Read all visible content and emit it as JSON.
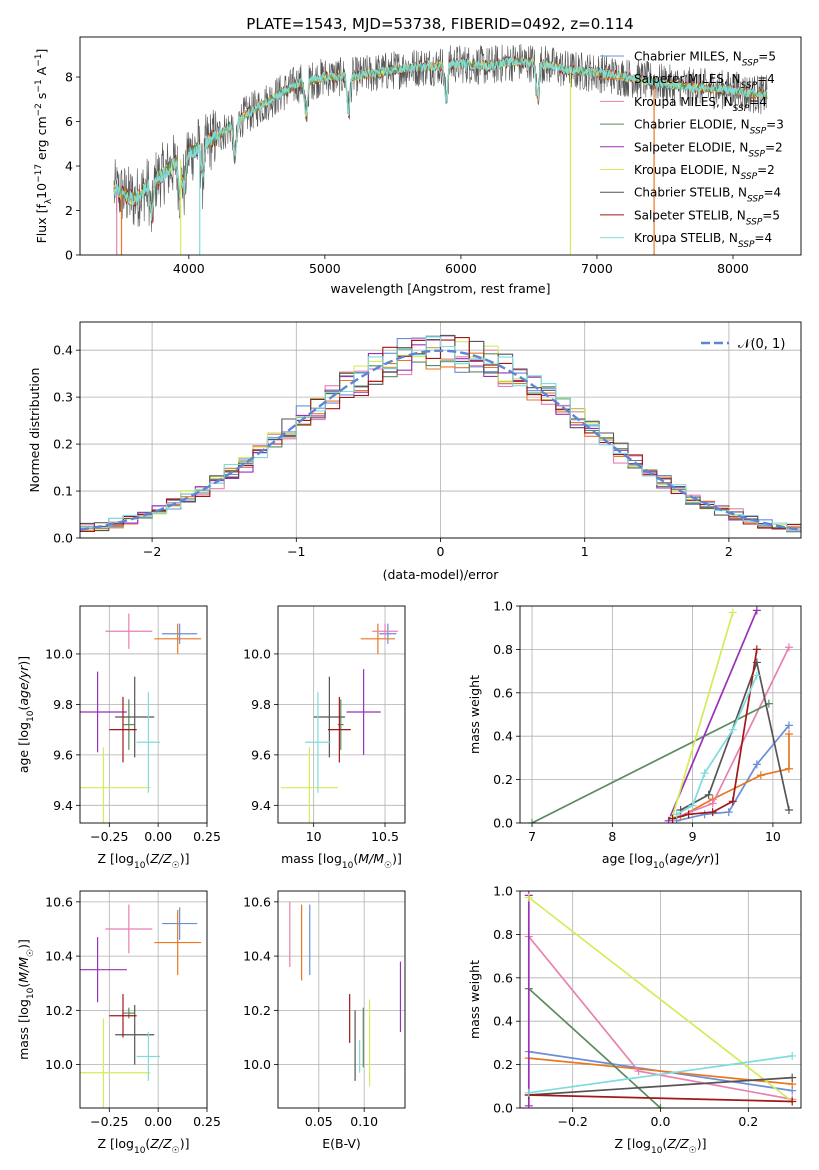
{
  "title": "PLATE=1543, MJD=53738, FIBERID=0492, z=0.114",
  "colors": {
    "Chabrier MILES": "#6a8fd8",
    "Salpeter MILES": "#e87722",
    "Kroupa MILES": "#e97fb2",
    "Chabrier ELODIE": "#5b8a5f",
    "Salpeter ELODIE": "#9b30b8",
    "Kroupa ELODIE": "#d4ec5a",
    "Chabrier STELIB": "#555555",
    "Salpeter STELIB": "#a01818",
    "Kroupa STELIB": "#7fdcdc",
    "normal_curve": "#5b86d6"
  },
  "chart_data": [
    {
      "type": "line",
      "xlabel": "wavelength [Angstrom, rest frame]",
      "ylabel": "Flux [f_λ 10^-17 erg cm^-2 s^-1 A^-1]",
      "xlim": [
        3200,
        8500
      ],
      "ylim": [
        0,
        9.8
      ],
      "xticks": [
        4000,
        5000,
        6000,
        7000,
        8000
      ],
      "yticks": [
        0,
        2,
        4,
        6,
        8
      ],
      "grid": false,
      "legend_position": "right",
      "series": [
        {
          "name": "Chabrier MILES, N_SSP=5"
        },
        {
          "name": "Salpeter MILES, N_SSP=4"
        },
        {
          "name": "Kroupa MILES, N_SSP=4"
        },
        {
          "name": "Chabrier ELODIE, N_SSP=3"
        },
        {
          "name": "Salpeter ELODIE, N_SSP=2"
        },
        {
          "name": "Kroupa ELODIE, N_SSP=2"
        },
        {
          "name": "Chabrier STELIB, N_SSP=4"
        },
        {
          "name": "Salpeter STELIB, N_SSP=5"
        },
        {
          "name": "Kroupa STELIB, N_SSP=4"
        }
      ],
      "continuum": {
        "x": [
          3450,
          3600,
          3800,
          4000,
          4200,
          4400,
          4600,
          4800,
          5000,
          5200,
          5400,
          5600,
          5800,
          6000,
          6200,
          6400,
          6600,
          6800,
          7000,
          7200,
          7400,
          7600,
          7800,
          8000,
          8200
        ],
        "y": [
          2.9,
          2.5,
          3.6,
          4.6,
          5.3,
          6.2,
          7.0,
          7.7,
          8.0,
          8.0,
          8.2,
          8.4,
          8.5,
          8.6,
          8.5,
          8.7,
          8.6,
          8.3,
          8.2,
          8.0,
          7.8,
          7.6,
          7.5,
          7.4,
          7.2
        ]
      }
    },
    {
      "type": "histogram",
      "xlabel": "(data-model)/error",
      "ylabel": "Normed distribution",
      "xlim": [
        -2.5,
        2.5
      ],
      "ylim": [
        0,
        0.46
      ],
      "xticks": [
        -2,
        -1,
        0,
        1,
        2
      ],
      "yticks": [
        0.0,
        0.1,
        0.2,
        0.3,
        0.4
      ],
      "grid": true,
      "legend": [
        "𝒩(0, 1)"
      ],
      "legend_position": "top-right",
      "bin_width": 0.1
    },
    {
      "type": "scatter",
      "xlabel": "Z [log10(Z/Z☉)]",
      "ylabel": "age  [log10(age/yr)]",
      "xlim": [
        -0.4,
        0.25
      ],
      "ylim": [
        9.33,
        10.19
      ],
      "xticks": [
        -0.25,
        0.0,
        0.25
      ],
      "xticklabels": [
        "−0.25",
        "0.00",
        "0.25"
      ],
      "yticks": [
        9.4,
        9.6,
        9.8,
        10.0
      ],
      "grid": true,
      "points": [
        {
          "series": "Chabrier MILES",
          "x": 0.11,
          "xerr": 0.09,
          "y": 10.08,
          "yerr": 0.04
        },
        {
          "series": "Salpeter MILES",
          "x": 0.1,
          "xerr": 0.12,
          "y": 10.06,
          "yerr": 0.06
        },
        {
          "series": "Kroupa MILES",
          "x": -0.15,
          "xerr": 0.12,
          "y": 10.09,
          "yerr": 0.07
        },
        {
          "series": "Chabrier ELODIE",
          "x": -0.15,
          "xerr": 0.03,
          "y": 9.72,
          "yerr": 0.1
        },
        {
          "series": "Salpeter ELODIE",
          "x": -0.31,
          "xerr": 0.15,
          "y": 9.77,
          "yerr": 0.16
        },
        {
          "series": "Kroupa ELODIE",
          "x": -0.28,
          "xerr": 0.24,
          "y": 9.47,
          "yerr": 0.16
        },
        {
          "series": "Chabrier STELIB",
          "x": -0.12,
          "xerr": 0.1,
          "y": 9.75,
          "yerr": 0.16
        },
        {
          "series": "Salpeter STELIB",
          "x": -0.18,
          "xerr": 0.07,
          "y": 9.7,
          "yerr": 0.13
        },
        {
          "series": "Kroupa STELIB",
          "x": -0.05,
          "xerr": 0.06,
          "y": 9.65,
          "yerr": 0.2
        }
      ]
    },
    {
      "type": "scatter",
      "xlabel": "mass [log10(M/M☉)]",
      "xlim": [
        9.75,
        10.64
      ],
      "ylim": [
        9.33,
        10.19
      ],
      "xticks": [
        10.0,
        10.5
      ],
      "yticks": [
        9.4,
        9.6,
        9.8,
        10.0
      ],
      "grid": true,
      "points": [
        {
          "series": "Chabrier MILES",
          "x": 10.52,
          "xerr": 0.06,
          "y": 10.08,
          "yerr": 0.04
        },
        {
          "series": "Salpeter MILES",
          "x": 10.45,
          "xerr": 0.12,
          "y": 10.06,
          "yerr": 0.06
        },
        {
          "series": "Kroupa MILES",
          "x": 10.5,
          "xerr": 0.09,
          "y": 10.09,
          "yerr": 0.03
        },
        {
          "series": "Chabrier ELODIE",
          "x": 10.19,
          "xerr": 0.02,
          "y": 9.72,
          "yerr": 0.1
        },
        {
          "series": "Salpeter ELODIE",
          "x": 10.35,
          "xerr": 0.12,
          "y": 9.77,
          "yerr": 0.17
        },
        {
          "series": "Kroupa ELODIE",
          "x": 9.97,
          "xerr": 0.2,
          "y": 9.47,
          "yerr": 0.16
        },
        {
          "series": "Chabrier STELIB",
          "x": 10.11,
          "xerr": 0.11,
          "y": 9.75,
          "yerr": 0.16
        },
        {
          "series": "Salpeter STELIB",
          "x": 10.18,
          "xerr": 0.08,
          "y": 9.7,
          "yerr": 0.13
        },
        {
          "series": "Kroupa STELIB",
          "x": 10.03,
          "xerr": 0.09,
          "y": 9.65,
          "yerr": 0.2
        }
      ]
    },
    {
      "type": "line",
      "xlabel": "age  [log10(age/yr)]",
      "ylabel": "mass weight",
      "xlim": [
        6.85,
        10.35
      ],
      "ylim": [
        0,
        1.0
      ],
      "xticks": [
        7,
        8,
        9,
        10
      ],
      "yticks": [
        0.0,
        0.2,
        0.4,
        0.6,
        0.8,
        1.0
      ],
      "grid": true,
      "series": [
        {
          "series": "Chabrier MILES",
          "x": [
            8.8,
            9.15,
            9.45,
            9.8,
            10.2
          ],
          "y": [
            0.01,
            0.04,
            0.05,
            0.27,
            0.45
          ]
        },
        {
          "series": "Salpeter MILES",
          "x": [
            8.85,
            9.25,
            9.85,
            10.2,
            10.2
          ],
          "y": [
            0.03,
            0.11,
            0.22,
            0.25,
            0.41
          ]
        },
        {
          "series": "Kroupa MILES",
          "x": [
            8.75,
            9.25,
            10.2
          ],
          "y": [
            0.02,
            0.09,
            0.81
          ]
        },
        {
          "series": "Chabrier ELODIE",
          "x": [
            7.0,
            9.95
          ],
          "y": [
            0.0,
            0.55
          ]
        },
        {
          "series": "Salpeter ELODIE",
          "x": [
            8.7,
            9.8
          ],
          "y": [
            0.01,
            0.98
          ]
        },
        {
          "series": "Kroupa ELODIE",
          "x": [
            8.75,
            9.5
          ],
          "y": [
            0.03,
            0.97
          ]
        },
        {
          "series": "Chabrier STELIB",
          "x": [
            8.85,
            9.2,
            9.8,
            10.2
          ],
          "y": [
            0.06,
            0.13,
            0.74,
            0.06
          ]
        },
        {
          "series": "Salpeter STELIB",
          "x": [
            8.75,
            8.95,
            9.25,
            9.5,
            9.8
          ],
          "y": [
            0.02,
            0.04,
            0.05,
            0.1,
            0.8
          ]
        },
        {
          "series": "Kroupa STELIB",
          "x": [
            8.8,
            9.0,
            9.15,
            9.5,
            9.8
          ],
          "y": [
            0.04,
            0.08,
            0.23,
            0.43,
            0.68
          ]
        }
      ]
    },
    {
      "type": "scatter",
      "xlabel": "Z [log10(Z/Z☉)]",
      "ylabel": "mass [log10(M/M☉)]",
      "xlim": [
        -0.4,
        0.25
      ],
      "ylim": [
        9.84,
        10.64
      ],
      "xticks": [
        -0.25,
        0.0,
        0.25
      ],
      "xticklabels": [
        "−0.25",
        "0.00",
        "0.25"
      ],
      "yticks": [
        10.0,
        10.2,
        10.4,
        10.6
      ],
      "grid": true,
      "points": [
        {
          "series": "Chabrier MILES",
          "x": 0.11,
          "xerr": 0.09,
          "y": 10.52,
          "yerr": 0.06
        },
        {
          "series": "Salpeter MILES",
          "x": 0.1,
          "xerr": 0.12,
          "y": 10.45,
          "yerr": 0.12
        },
        {
          "series": "Kroupa MILES",
          "x": -0.15,
          "xerr": 0.12,
          "y": 10.5,
          "yerr": 0.09
        },
        {
          "series": "Chabrier ELODIE",
          "x": -0.15,
          "xerr": 0.03,
          "y": 10.19,
          "yerr": 0.02
        },
        {
          "series": "Salpeter ELODIE",
          "x": -0.31,
          "xerr": 0.15,
          "y": 10.35,
          "yerr": 0.12
        },
        {
          "series": "Kroupa ELODIE",
          "x": -0.28,
          "xerr": 0.24,
          "y": 9.97,
          "yerr": 0.2
        },
        {
          "series": "Chabrier STELIB",
          "x": -0.12,
          "xerr": 0.1,
          "y": 10.11,
          "yerr": 0.11
        },
        {
          "series": "Salpeter STELIB",
          "x": -0.18,
          "xerr": 0.07,
          "y": 10.18,
          "yerr": 0.08
        },
        {
          "series": "Kroupa STELIB",
          "x": -0.05,
          "xerr": 0.06,
          "y": 10.03,
          "yerr": 0.09
        }
      ]
    },
    {
      "type": "scatter",
      "xlabel": "E(B-V)",
      "xlim": [
        0.005,
        0.145
      ],
      "ylim": [
        9.84,
        10.64
      ],
      "xticks": [
        0.05,
        0.1
      ],
      "xticklabels": [
        "0.05",
        "0.10"
      ],
      "yticks": [
        10.0,
        10.2,
        10.4,
        10.6
      ],
      "grid": true,
      "points": [
        {
          "series": "Kroupa MILES",
          "x": 0.018,
          "y": 10.48,
          "yerr": 0.12
        },
        {
          "series": "Salpeter MILES",
          "x": 0.031,
          "y": 10.45,
          "yerr": 0.14
        },
        {
          "series": "Chabrier MILES",
          "x": 0.04,
          "y": 10.46,
          "yerr": 0.13
        },
        {
          "series": "Salpeter STELIB",
          "x": 0.084,
          "y": 10.17,
          "yerr": 0.09
        },
        {
          "series": "Chabrier STELIB",
          "x": 0.09,
          "y": 10.07,
          "yerr": 0.13
        },
        {
          "series": "Kroupa STELIB",
          "x": 0.095,
          "y": 10.03,
          "yerr": 0.06
        },
        {
          "series": "Chabrier ELODIE",
          "x": 0.099,
          "y": 10.1,
          "yerr": 0.11
        },
        {
          "series": "Kroupa ELODIE",
          "x": 0.106,
          "y": 10.08,
          "yerr": 0.16
        },
        {
          "series": "Salpeter ELODIE",
          "x": 0.14,
          "y": 10.25,
          "yerr": 0.13
        }
      ]
    },
    {
      "type": "line",
      "xlabel": "Z [log10(Z/Z☉)]",
      "ylabel": "mass weight",
      "xlim": [
        -0.32,
        0.32
      ],
      "ylim": [
        0,
        1.0
      ],
      "xticks": [
        -0.2,
        0.0,
        0.2
      ],
      "xticklabels": [
        "−0.2",
        "0.0",
        "0.2"
      ],
      "yticks": [
        0.0,
        0.2,
        0.4,
        0.6,
        0.8,
        1.0
      ],
      "grid": true,
      "series": [
        {
          "series": "Chabrier MILES",
          "x": [
            -0.3,
            0.3
          ],
          "y": [
            0.26,
            0.08
          ]
        },
        {
          "series": "Salpeter MILES",
          "x": [
            -0.3,
            0.3
          ],
          "y": [
            0.23,
            0.11
          ]
        },
        {
          "series": "Kroupa MILES",
          "x": [
            -0.3,
            -0.05,
            0.3
          ],
          "y": [
            0.79,
            0.17,
            0.04
          ]
        },
        {
          "series": "Chabrier ELODIE",
          "x": [
            -0.3,
            0.0
          ],
          "y": [
            0.55,
            0.0
          ]
        },
        {
          "series": "Salpeter ELODIE",
          "x": [
            -0.3,
            -0.3
          ],
          "y": [
            0.01,
            0.98
          ]
        },
        {
          "series": "Kroupa ELODIE",
          "x": [
            -0.3,
            0.3
          ],
          "y": [
            0.97,
            0.03
          ]
        },
        {
          "series": "Chabrier STELIB",
          "x": [
            -0.3,
            0.3
          ],
          "y": [
            0.06,
            0.14
          ]
        },
        {
          "series": "Salpeter STELIB",
          "x": [
            -0.3,
            0.3
          ],
          "y": [
            0.06,
            0.03
          ]
        },
        {
          "series": "Kroupa STELIB",
          "x": [
            -0.3,
            0.3
          ],
          "y": [
            0.07,
            0.24
          ]
        }
      ]
    }
  ]
}
